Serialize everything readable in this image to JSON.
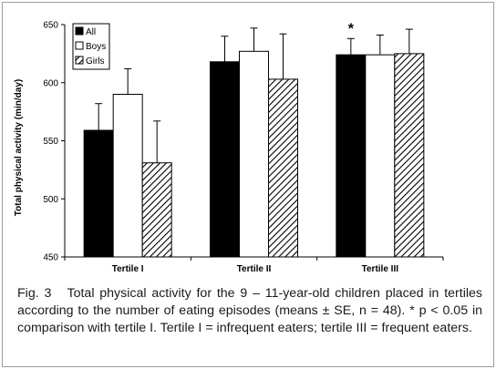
{
  "chart_data": {
    "type": "bar",
    "categories": [
      "Tertile I",
      "Tertile II",
      "Tertile III"
    ],
    "series": [
      {
        "name": "All",
        "values": [
          559,
          618,
          624
        ],
        "errors": [
          23,
          22,
          14
        ],
        "fill": "solid",
        "color": "#000000"
      },
      {
        "name": "Boys",
        "values": [
          590,
          627,
          624
        ],
        "errors": [
          22,
          20,
          17
        ],
        "fill": "white",
        "color": "#ffffff"
      },
      {
        "name": "Girls",
        "values": [
          531,
          603,
          625
        ],
        "errors": [
          36,
          39,
          21
        ],
        "fill": "hatched",
        "color": "#000000"
      }
    ],
    "ylabel": "Total physical activity (min/day)",
    "xlabel": "",
    "ylim": [
      450,
      650
    ],
    "yticks": [
      "450",
      "500",
      "550",
      "600",
      "650"
    ],
    "annotations": [
      {
        "category": "Tertile III",
        "text": "*"
      }
    ],
    "legend_position": "top-left",
    "grid": false
  },
  "caption": {
    "label": "Fig. 3",
    "text": "Total physical activity for the 9 – 11-year-old children placed in tertiles according to the number of eating episodes (means ± SE, n = 48). * p < 0.05 in comparison with tertile I. Tertile I = infrequent eaters; tertile III = frequent eaters."
  }
}
